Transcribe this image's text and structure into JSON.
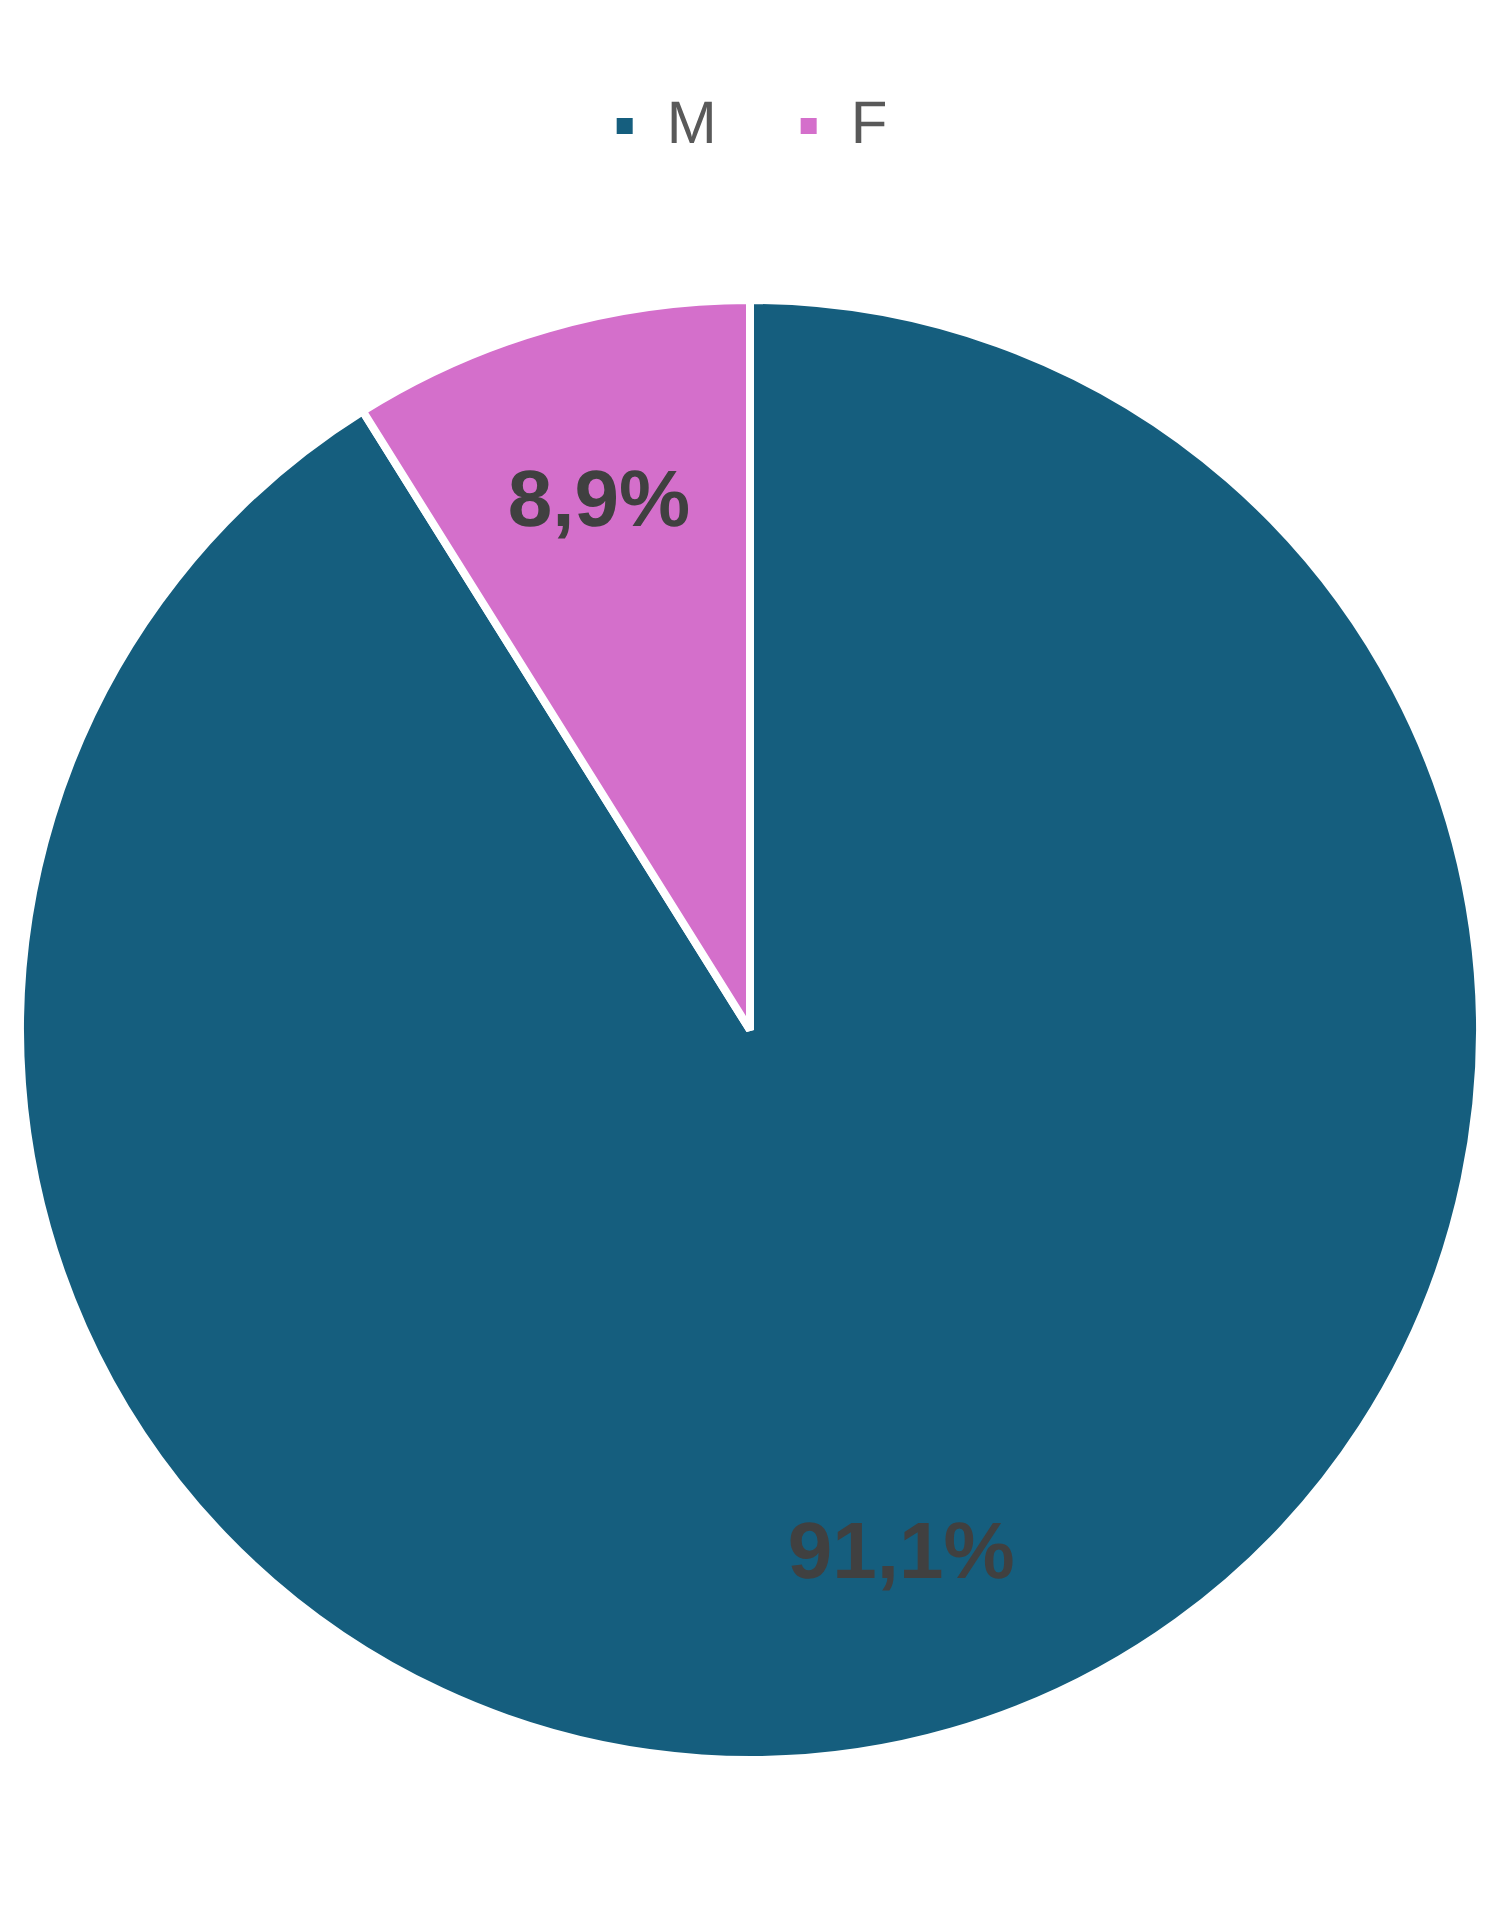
{
  "chart_data": {
    "type": "pie",
    "categories": [
      "M",
      "F"
    ],
    "values": [
      91.1,
      8.9
    ],
    "colors": [
      "#155e7e",
      "#d46fcb"
    ],
    "value_labels": [
      "91,1%",
      "8,9%"
    ],
    "legend": "top"
  }
}
